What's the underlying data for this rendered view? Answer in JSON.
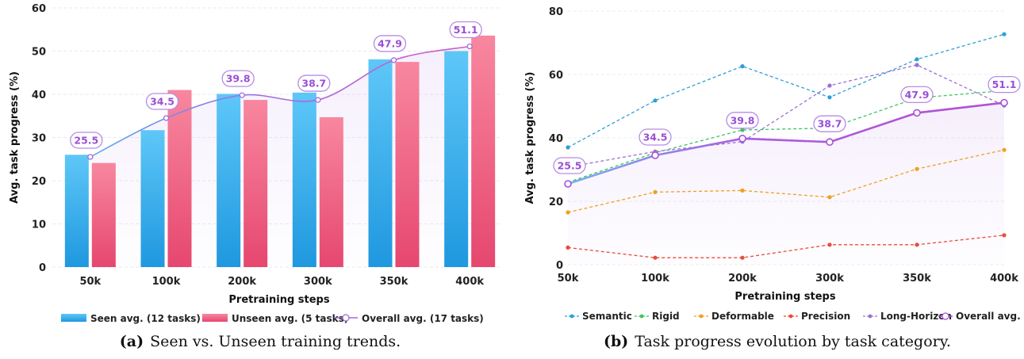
{
  "chart_data": [
    {
      "type": "bar",
      "categories": [
        "50k",
        "100k",
        "200k",
        "300k",
        "350k",
        "400k"
      ],
      "series": [
        {
          "name": "Seen avg. (12 tasks)",
          "type": "bar",
          "values": [
            26.0,
            31.7,
            40.1,
            40.4,
            48.1,
            50.0
          ],
          "color": "#29a9ec"
        },
        {
          "name": "Unseen avg. (5 tasks)",
          "type": "bar",
          "values": [
            24.1,
            41.0,
            38.7,
            34.7,
            47.5,
            53.6
          ],
          "color": "#ef5d82"
        },
        {
          "name": "Overall avg. (17 tasks)",
          "type": "line",
          "values": [
            25.5,
            34.5,
            39.8,
            38.7,
            47.9,
            51.1
          ],
          "color": "#a36ad9"
        }
      ],
      "data_labels": [
        "25.5",
        "34.5",
        "39.8",
        "38.7",
        "47.9",
        "51.1"
      ],
      "yticks": [
        "0",
        "10",
        "20",
        "30",
        "40",
        "50",
        "60"
      ],
      "xlabel": "Pretraining steps",
      "ylabel": "Avg. task progress (%)",
      "ylim": [
        0,
        60
      ],
      "grid": true,
      "legend": "bottom",
      "caption_label": "(a)",
      "caption_text": "Seen vs. Unseen training trends."
    },
    {
      "type": "line",
      "categories": [
        "50k",
        "100k",
        "200k",
        "300k",
        "350k",
        "400k"
      ],
      "series": [
        {
          "name": "Semantic",
          "values": [
            37.0,
            51.8,
            62.6,
            52.8,
            64.8,
            72.7
          ],
          "color": "#2b9fd6"
        },
        {
          "name": "Rigid",
          "values": [
            26.0,
            35.3,
            42.5,
            43.1,
            52.6,
            54.9
          ],
          "color": "#3cc45f"
        },
        {
          "name": "Deformable",
          "values": [
            16.5,
            22.9,
            23.4,
            21.3,
            30.2,
            36.2
          ],
          "color": "#f0a020"
        },
        {
          "name": "Precision",
          "values": [
            5.4,
            2.2,
            2.2,
            6.3,
            6.3,
            9.3
          ],
          "color": "#e94b3c"
        },
        {
          "name": "Long-Horizon",
          "values": [
            30.8,
            35.7,
            38.8,
            56.5,
            63.0,
            50.2
          ],
          "color": "#9d6fd1"
        },
        {
          "name": "Overall avg.",
          "values": [
            25.5,
            34.5,
            39.8,
            38.7,
            47.9,
            51.1
          ],
          "color": "#a94fd8"
        }
      ],
      "data_labels": [
        "25.5",
        "34.5",
        "39.8",
        "38.7",
        "47.9",
        "51.1"
      ],
      "yticks": [
        "0",
        "20",
        "40",
        "60",
        "80"
      ],
      "xlabel": "Pretraining steps",
      "ylabel": "Avg. task progress (%)",
      "ylim": [
        0,
        80
      ],
      "grid": true,
      "legend": "bottom",
      "caption_label": "(b)",
      "caption_text": "Task progress evolution by task category."
    }
  ]
}
